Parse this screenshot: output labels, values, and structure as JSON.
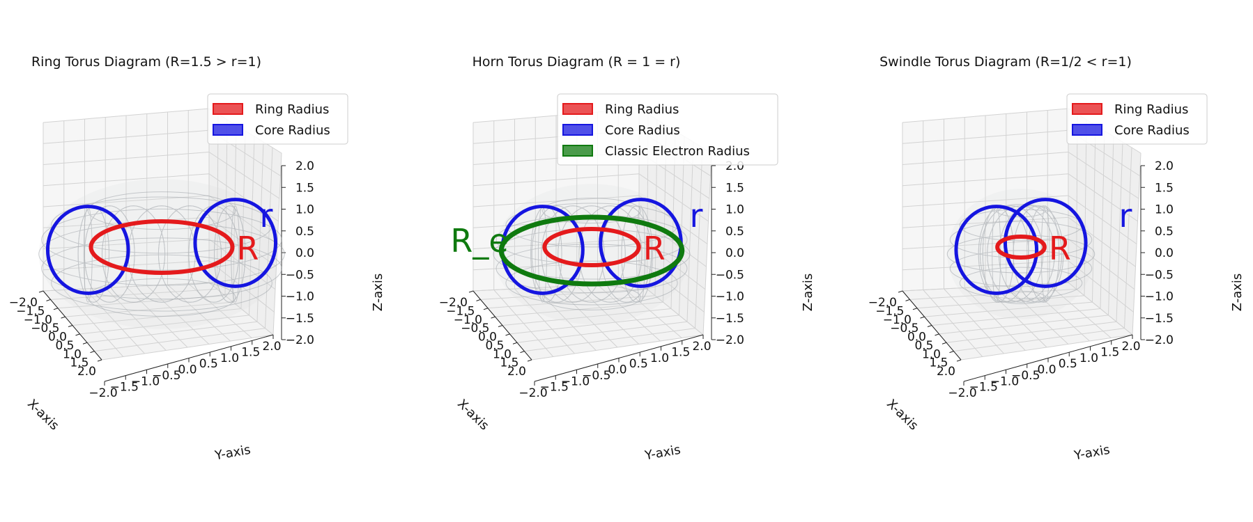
{
  "panels": [
    {
      "id": "ring",
      "title": "Ring Torus Diagram (R=1.5 > r=1)",
      "R": 1.5,
      "r": 1,
      "electron_ring": false,
      "legend": [
        "Ring Radius",
        "Core Radius"
      ],
      "labels": {
        "R": "R",
        "r": "r",
        "Re": ""
      }
    },
    {
      "id": "horn",
      "title": "Horn Torus Diagram (R = 1 = r)",
      "R": 1,
      "r": 1,
      "electron_ring": true,
      "Re": 2,
      "legend": [
        "Ring Radius",
        "Core Radius",
        "Classic Electron Radius"
      ],
      "labels": {
        "R": "R",
        "r": "r",
        "Re": "R_e"
      }
    },
    {
      "id": "swindle",
      "title": "Swindle Torus Diagram (R=1/2 < r=1)",
      "R": 0.5,
      "r": 1,
      "electron_ring": false,
      "legend": [
        "Ring Radius",
        "Core Radius"
      ],
      "labels": {
        "R": "R",
        "r": "r",
        "Re": ""
      }
    }
  ],
  "axes": {
    "xlabel": "X-axis",
    "ylabel": "Y-axis",
    "zlabel": "Z-axis",
    "x_ticks": [
      "−2.0",
      "−1.5",
      "−1.0",
      "−0.5",
      "0.0",
      "0.5",
      "1.0",
      "1.5",
      "2.0"
    ],
    "y_ticks": [
      "−2.0",
      "−1.5",
      "−1.0",
      "−0.5",
      "0.0",
      "0.5",
      "1.0",
      "1.5",
      "2.0"
    ],
    "z_ticks": [
      "2.0",
      "1.5",
      "1.0",
      "0.5",
      "0.0",
      "−0.5",
      "−1.0",
      "−1.5",
      "−2.0"
    ],
    "range": [
      -2,
      2
    ]
  },
  "colors": {
    "ring": "#e41a1c",
    "core": "#1515e0",
    "electron": "#0f7a0f",
    "surface": "#9aa0a6"
  }
}
